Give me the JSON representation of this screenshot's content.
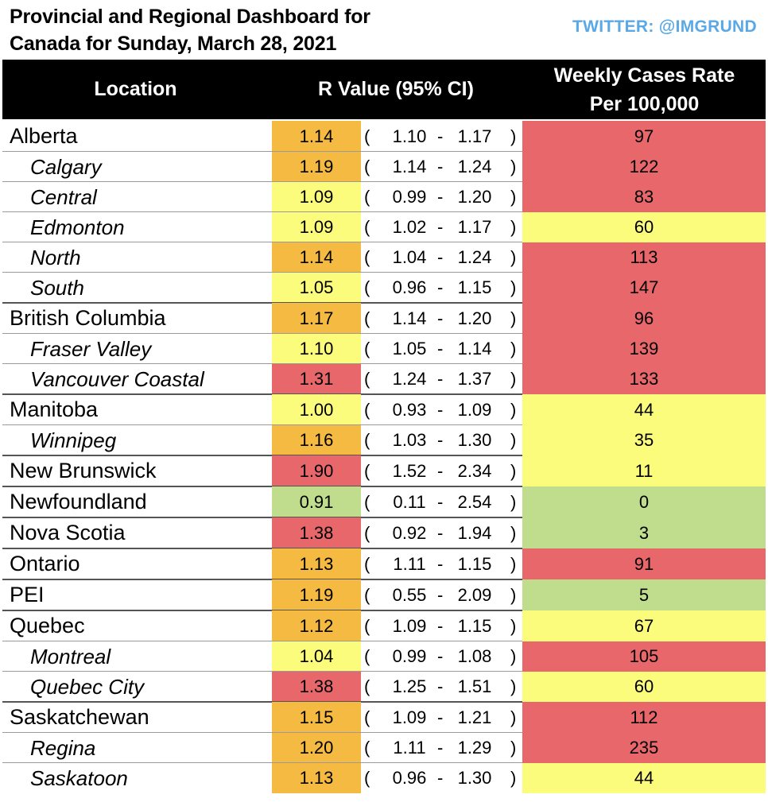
{
  "title_line1": "Provincial and Regional Dashboard for",
  "title_line2": "Canada for Sunday, March 28, 2021",
  "twitter": "TWITTER: @IMGRUND",
  "header": {
    "location": "Location",
    "r_value": "R Value  (95% CI)",
    "weekly_line1": "Weekly Cases Rate",
    "weekly_line2": "Per 100,000"
  },
  "colors": {
    "red": "#e8676a",
    "orange": "#f5ba42",
    "yellow": "#fcfc7c",
    "green": "#bfdd8c"
  },
  "rows": [
    {
      "name": "Alberta",
      "type": "province",
      "r": "1.14",
      "lo": "1.10",
      "hi": "1.17",
      "rate": "97",
      "r_color": "orange",
      "rate_color": "red"
    },
    {
      "name": "Calgary",
      "type": "region",
      "r": "1.19",
      "lo": "1.14",
      "hi": "1.24",
      "rate": "122",
      "r_color": "orange",
      "rate_color": "red"
    },
    {
      "name": "Central",
      "type": "region",
      "r": "1.09",
      "lo": "0.99",
      "hi": "1.20",
      "rate": "83",
      "r_color": "yellow",
      "rate_color": "red"
    },
    {
      "name": "Edmonton",
      "type": "region",
      "r": "1.09",
      "lo": "1.02",
      "hi": "1.17",
      "rate": "60",
      "r_color": "yellow",
      "rate_color": "yellow"
    },
    {
      "name": "North",
      "type": "region",
      "r": "1.14",
      "lo": "1.04",
      "hi": "1.24",
      "rate": "113",
      "r_color": "orange",
      "rate_color": "red"
    },
    {
      "name": "South",
      "type": "region",
      "r": "1.05",
      "lo": "0.96",
      "hi": "1.15",
      "rate": "147",
      "r_color": "yellow",
      "rate_color": "red"
    },
    {
      "name": "British Columbia",
      "type": "province",
      "r": "1.17",
      "lo": "1.14",
      "hi": "1.20",
      "rate": "96",
      "r_color": "orange",
      "rate_color": "red"
    },
    {
      "name": "Fraser Valley",
      "type": "region",
      "r": "1.10",
      "lo": "1.05",
      "hi": "1.14",
      "rate": "139",
      "r_color": "yellow",
      "rate_color": "red"
    },
    {
      "name": "Vancouver Coastal",
      "type": "region",
      "r": "1.31",
      "lo": "1.24",
      "hi": "1.37",
      "rate": "133",
      "r_color": "red",
      "rate_color": "red"
    },
    {
      "name": "Manitoba",
      "type": "province",
      "r": "1.00",
      "lo": "0.93",
      "hi": "1.09",
      "rate": "44",
      "r_color": "yellow",
      "rate_color": "yellow"
    },
    {
      "name": "Winnipeg",
      "type": "region",
      "r": "1.16",
      "lo": "1.03",
      "hi": "1.30",
      "rate": "35",
      "r_color": "orange",
      "rate_color": "yellow"
    },
    {
      "name": "New Brunswick",
      "type": "province",
      "r": "1.90",
      "lo": "1.52",
      "hi": "2.34",
      "rate": "11",
      "r_color": "red",
      "rate_color": "yellow"
    },
    {
      "name": "Newfoundland",
      "type": "province",
      "r": "0.91",
      "lo": "0.11",
      "hi": "2.54",
      "rate": "0",
      "r_color": "green",
      "rate_color": "green"
    },
    {
      "name": "Nova Scotia",
      "type": "province",
      "r": "1.38",
      "lo": "0.92",
      "hi": "1.94",
      "rate": "3",
      "r_color": "red",
      "rate_color": "green"
    },
    {
      "name": "Ontario",
      "type": "province",
      "r": "1.13",
      "lo": "1.11",
      "hi": "1.15",
      "rate": "91",
      "r_color": "orange",
      "rate_color": "red"
    },
    {
      "name": "PEI",
      "type": "province",
      "r": "1.19",
      "lo": "0.55",
      "hi": "2.09",
      "rate": "5",
      "r_color": "orange",
      "rate_color": "green"
    },
    {
      "name": "Quebec",
      "type": "province",
      "r": "1.12",
      "lo": "1.09",
      "hi": "1.15",
      "rate": "67",
      "r_color": "orange",
      "rate_color": "yellow"
    },
    {
      "name": "Montreal",
      "type": "region",
      "r": "1.04",
      "lo": "0.99",
      "hi": "1.08",
      "rate": "105",
      "r_color": "yellow",
      "rate_color": "red"
    },
    {
      "name": "Quebec City",
      "type": "region",
      "r": "1.38",
      "lo": "1.25",
      "hi": "1.51",
      "rate": "60",
      "r_color": "red",
      "rate_color": "yellow"
    },
    {
      "name": "Saskatchewan",
      "type": "province",
      "r": "1.15",
      "lo": "1.09",
      "hi": "1.21",
      "rate": "112",
      "r_color": "orange",
      "rate_color": "red"
    },
    {
      "name": "Regina",
      "type": "region",
      "r": "1.20",
      "lo": "1.11",
      "hi": "1.29",
      "rate": "235",
      "r_color": "orange",
      "rate_color": "red"
    },
    {
      "name": "Saskatoon",
      "type": "region",
      "r": "1.13",
      "lo": "0.96",
      "hi": "1.30",
      "rate": "44",
      "r_color": "orange",
      "rate_color": "yellow"
    }
  ]
}
